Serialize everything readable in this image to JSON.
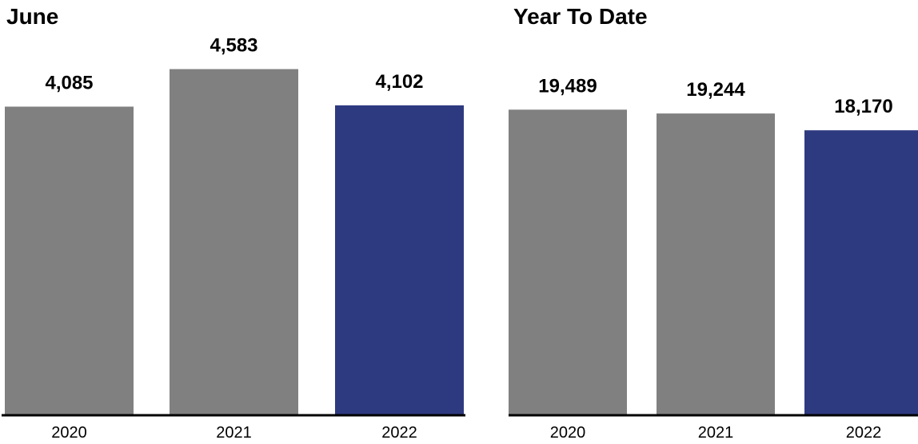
{
  "chart_data": [
    {
      "type": "bar",
      "title": "June",
      "categories": [
        "2020",
        "2021",
        "2022"
      ],
      "values": [
        4085,
        4583,
        4102
      ],
      "value_labels": [
        "4,085",
        "4,583",
        "4,102"
      ],
      "colors": [
        "#808080",
        "#808080",
        "#2e3a80"
      ],
      "ylim": [
        0,
        5500
      ],
      "xlabel": "",
      "ylabel": "",
      "grid": false
    },
    {
      "type": "bar",
      "title": "Year To Date",
      "categories": [
        "2020",
        "2021",
        "2022"
      ],
      "values": [
        19489,
        19244,
        18170
      ],
      "value_labels": [
        "19,489",
        "19,244",
        "18,170"
      ],
      "colors": [
        "#808080",
        "#808080",
        "#2e3a80"
      ],
      "ylim": [
        0,
        26500
      ],
      "xlabel": "",
      "ylabel": "",
      "grid": false
    }
  ]
}
